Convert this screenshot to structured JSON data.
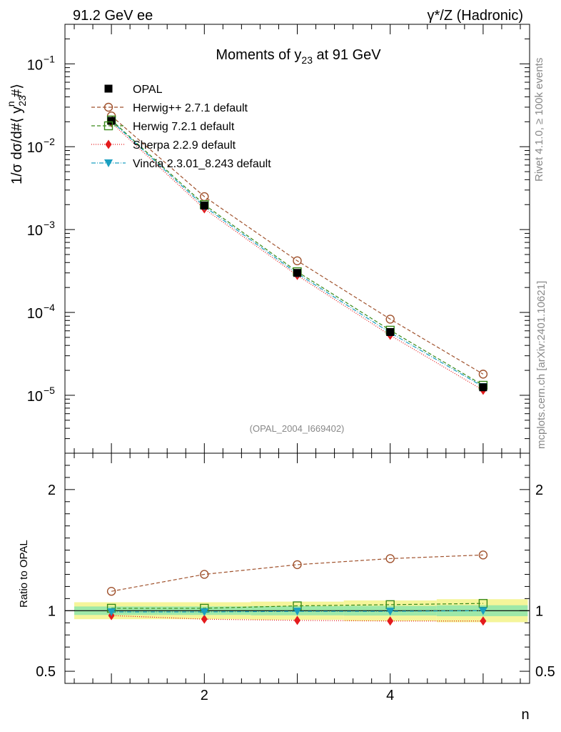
{
  "header": {
    "left": "91.2 GeV ee",
    "right": "γ*/Z (Hadronic)"
  },
  "side": {
    "rivet": "Rivet 4.1.0, ≥ 100k events",
    "mcplots": "mcplots.cern.ch [arXiv:2401.10621]"
  },
  "chart_data": {
    "type": "line",
    "title": "Moments of y23 at 91 GeV",
    "title_parts": {
      "pre": "Moments of y",
      "sub": "23",
      "post": " at 91 GeV"
    },
    "ylabel_main": "1/σ  dσ/d#⟨ y23^n #⟩",
    "ylabel_parts": {
      "a": "1/σ  dσ/d#⟨ y",
      "sub": "23",
      "sup": "n",
      "b": " #⟩"
    },
    "ylabel_ratio": "Ratio to OPAL",
    "xlabel": "n",
    "analysis_id": "(OPAL_2004_I669402)",
    "x": [
      1,
      2,
      3,
      4,
      5
    ],
    "xlim": [
      0.5,
      5.5
    ],
    "ylim_main": [
      2e-06,
      0.3
    ],
    "ylim_ratio": [
      0.4,
      2.3
    ],
    "x_ticks": [
      "2",
      "4"
    ],
    "y_ticks_main": [
      {
        "base": "10",
        "exp": "−1",
        "value": 0.1
      },
      {
        "base": "10",
        "exp": "−2",
        "value": 0.01
      },
      {
        "base": "10",
        "exp": "−3",
        "value": 0.001
      },
      {
        "base": "10",
        "exp": "−4",
        "value": 0.0001
      },
      {
        "base": "10",
        "exp": "−5",
        "value": 1e-05
      }
    ],
    "y_ticks_ratio": [
      {
        "label": "2",
        "value": 2
      },
      {
        "label": "1",
        "value": 1
      },
      {
        "label": "0.5",
        "value": 0.5
      }
    ],
    "uncertainty_band": {
      "green_half_width": [
        0.035,
        0.035,
        0.038,
        0.04,
        0.045
      ],
      "yellow_half_width": [
        0.07,
        0.07,
        0.075,
        0.085,
        0.095
      ]
    },
    "series": [
      {
        "name": "OPAL",
        "values": [
          0.0205,
          0.00195,
          0.0003,
          5.8e-05,
          1.25e-05
        ],
        "ratio": [
          1,
          1,
          1,
          1,
          1
        ],
        "color": "#000000",
        "marker": "square-filled",
        "dash": ""
      },
      {
        "name": "Herwig++ 2.7.1 default",
        "values": [
          0.0235,
          0.0025,
          0.00042,
          8.3e-05,
          1.8e-05
        ],
        "ratio": [
          1.16,
          1.3,
          1.38,
          1.43,
          1.46
        ],
        "color": "#a0522d",
        "marker": "circle-open",
        "dash": "5,3"
      },
      {
        "name": "Herwig 7.2.1 default",
        "values": [
          0.021,
          0.002,
          0.00031,
          6.1e-05,
          1.32e-05
        ],
        "ratio": [
          1.02,
          1.02,
          1.04,
          1.05,
          1.06
        ],
        "color": "#3a8a1a",
        "marker": "square-open",
        "dash": "5,3"
      },
      {
        "name": "Sherpa 2.2.9 default",
        "values": [
          0.0195,
          0.00178,
          0.00028,
          5.3e-05,
          1.15e-05
        ],
        "ratio": [
          0.96,
          0.93,
          0.92,
          0.915,
          0.915
        ],
        "color": "#e41a1c",
        "marker": "diamond-filled",
        "dash": "1,2"
      },
      {
        "name": "Vincia 2.3.01_8.243 default",
        "values": [
          0.0205,
          0.0019,
          0.000295,
          5.7e-05,
          1.27e-05
        ],
        "ratio": [
          0.99,
          0.99,
          0.995,
          0.995,
          1.0
        ],
        "color": "#1a9fc0",
        "marker": "triangle-down-filled",
        "dash": "6,2,1,2"
      }
    ]
  }
}
